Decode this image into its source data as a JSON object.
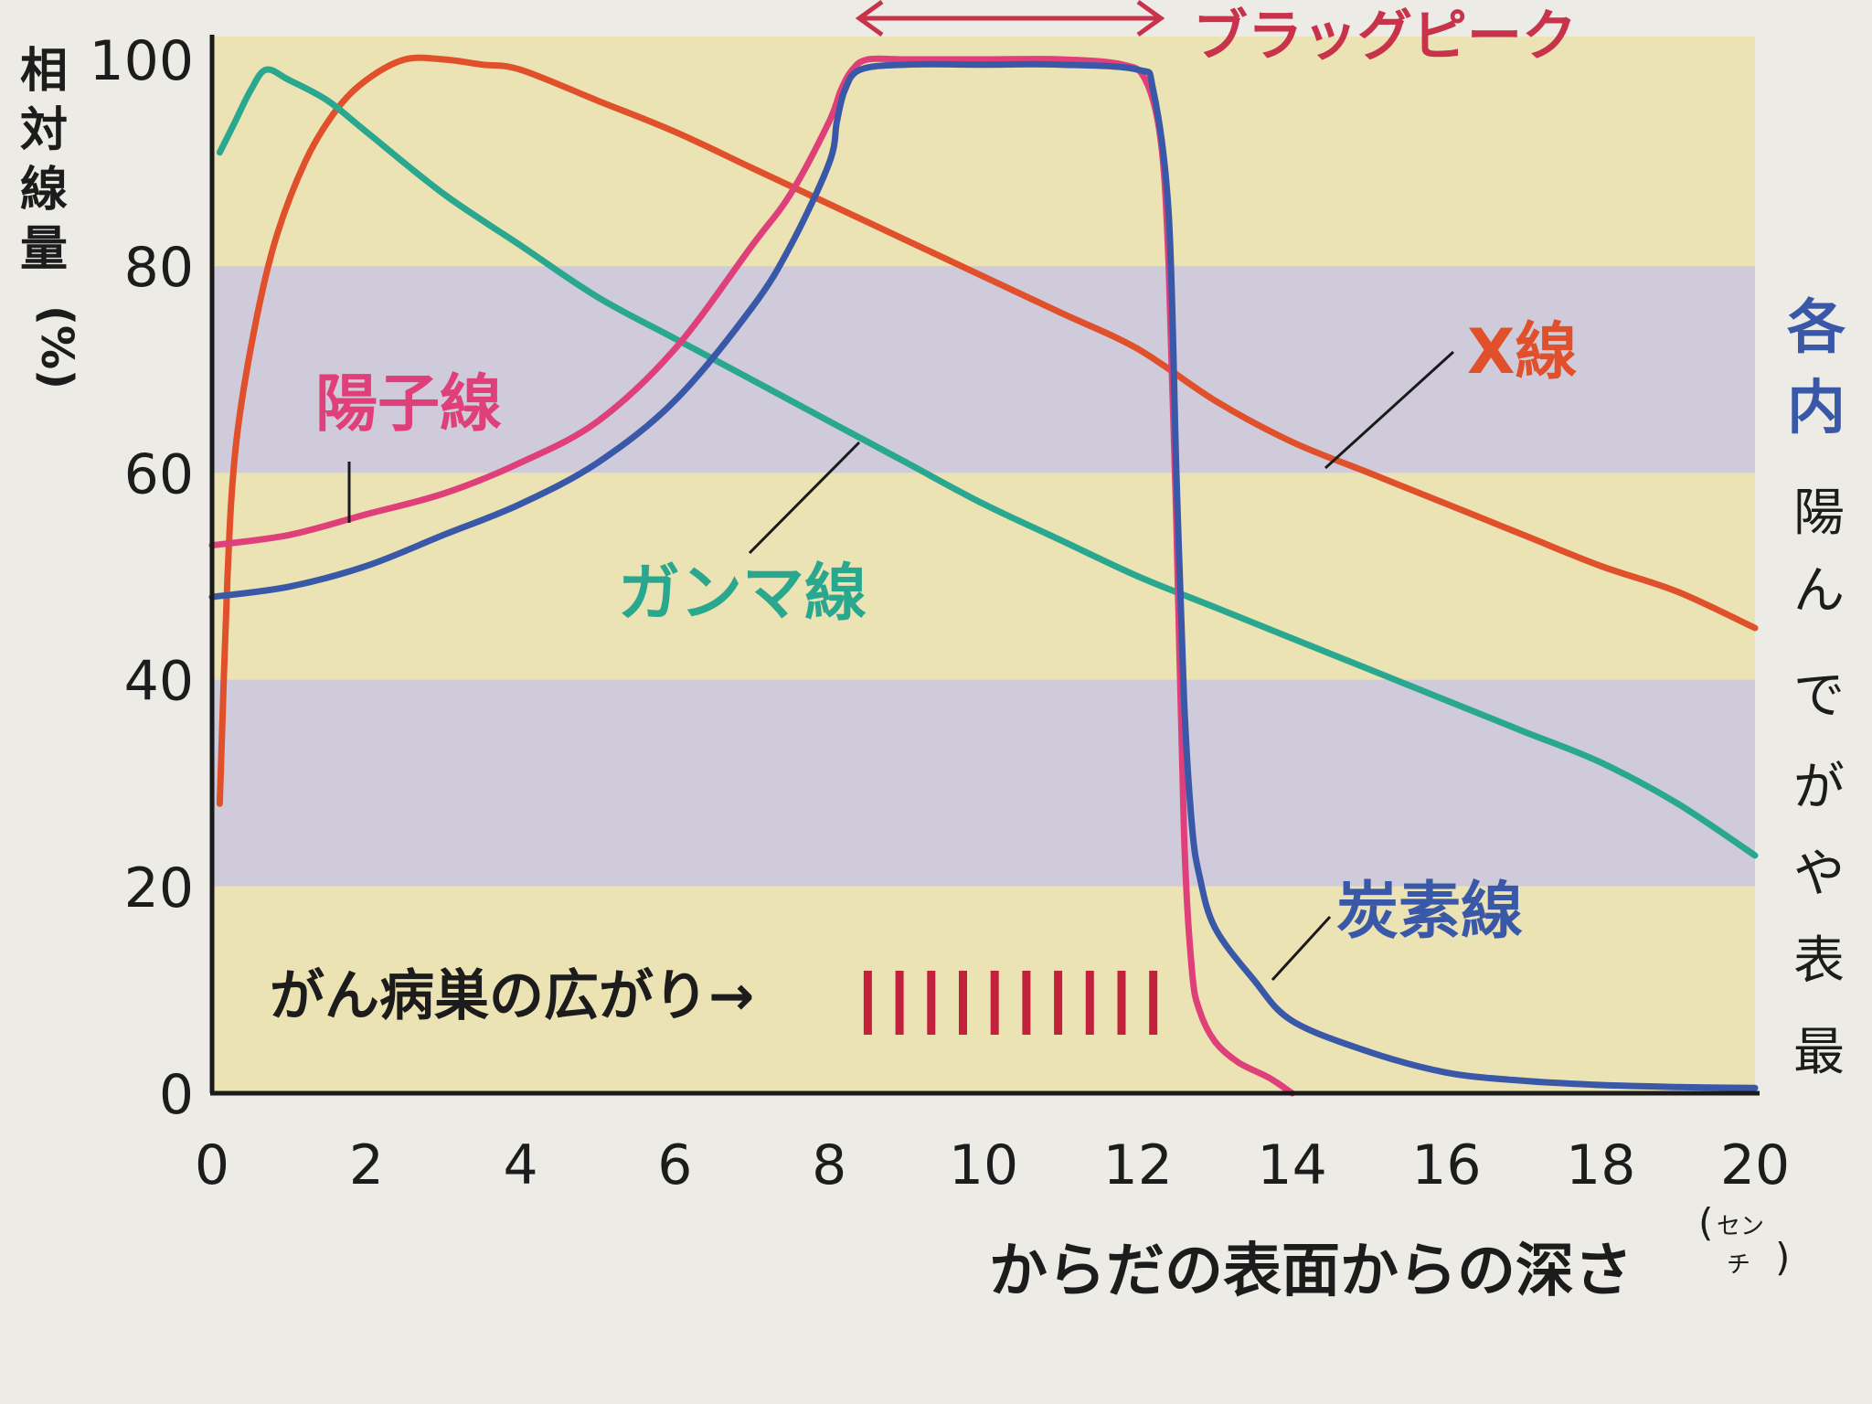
{
  "chart_data": {
    "type": "line",
    "title": "",
    "xlabel": "からだの表面からの深さ",
    "xlabel_unit_top": "セン",
    "xlabel_unit_bottom": "チ",
    "ylabel_chars": [
      "相",
      "対",
      "線",
      "量",
      "(%)"
    ],
    "xlim": [
      0,
      20
    ],
    "ylim": [
      0,
      100
    ],
    "x_ticks": [
      "0",
      "2",
      "4",
      "6",
      "8",
      "10",
      "12",
      "14",
      "16",
      "18",
      "20"
    ],
    "y_ticks": [
      "0",
      "20",
      "40",
      "60",
      "80",
      "100"
    ],
    "band_colors": [
      "#ece3b4",
      "#cfcbdb"
    ],
    "series": [
      {
        "name": "X線",
        "color": "#e0502a",
        "x": [
          0.1,
          0.2,
          0.3,
          0.5,
          0.8,
          1.2,
          1.6,
          2.0,
          2.5,
          3.0,
          3.5,
          4.0,
          5.0,
          6.0,
          7.0,
          8.0,
          9.0,
          10.0,
          11.0,
          12.0,
          13.0,
          14.0,
          15.0,
          16.0,
          17.0,
          18.0,
          19.0,
          20.0
        ],
        "y": [
          28,
          50,
          62,
          72,
          82,
          90,
          95,
          98,
          100,
          100,
          99.5,
          99,
          96,
          93,
          89.5,
          86,
          82.5,
          79,
          75.5,
          72,
          67,
          63,
          60,
          57,
          54,
          51,
          48.5,
          45
        ]
      },
      {
        "name": "ガンマ線",
        "color": "#2aa88f",
        "x": [
          0.1,
          0.3,
          0.5,
          0.7,
          1.0,
          1.5,
          2.0,
          3.0,
          4.0,
          5.0,
          6.0,
          7.0,
          8.0,
          9.0,
          10.0,
          11.0,
          12.0,
          13.0,
          14.0,
          15.0,
          16.0,
          17.0,
          18.0,
          19.0,
          20.0
        ],
        "y": [
          91,
          94,
          97,
          99,
          98,
          96,
          93,
          87,
          82,
          77,
          73,
          69,
          65,
          61,
          57,
          53.5,
          50,
          47,
          44,
          41,
          38,
          35,
          32,
          28,
          23
        ]
      },
      {
        "name": "陽子線",
        "color": "#e0407a",
        "x": [
          0,
          1,
          2,
          3,
          4,
          5,
          6,
          7,
          7.5,
          8,
          8.15,
          8.3,
          8.5,
          9,
          10,
          11,
          11.8,
          12.1,
          12.3,
          12.4,
          12.5,
          12.6,
          12.7,
          12.8,
          13.0,
          13.3,
          13.7,
          14.0
        ],
        "y": [
          53,
          54,
          56,
          58,
          61,
          65,
          72,
          82,
          87,
          94,
          97,
          99,
          100,
          100,
          100,
          100,
          99.5,
          98,
          92,
          80,
          55,
          25,
          12,
          8,
          5,
          3,
          1.5,
          0
        ]
      },
      {
        "name": "炭素線",
        "color": "#3a58a8",
        "x": [
          0,
          1,
          2,
          3,
          4,
          5,
          6,
          7,
          7.5,
          8,
          8.1,
          8.2,
          8.4,
          9,
          10,
          11,
          12,
          12.2,
          12.4,
          12.5,
          12.6,
          12.7,
          12.8,
          13,
          13.5,
          14,
          15,
          16,
          17,
          18,
          19,
          20
        ],
        "y": [
          48,
          49,
          51,
          54,
          57,
          61,
          67,
          76,
          82,
          90,
          94,
          97,
          99,
          99.5,
          99.5,
          99.5,
          99,
          97,
          85,
          60,
          38,
          26,
          21,
          16,
          11,
          7,
          4,
          2,
          1.2,
          0.8,
          0.6,
          0.5
        ]
      }
    ],
    "annotations": {
      "bragg_peak": "ブラッグピーク",
      "tumor_extent": "がん病巣の広がり→",
      "tumor_extent_x": [
        8.5,
        12.2
      ]
    },
    "side_text": {
      "blue_lines": [
        "各",
        "内"
      ],
      "black_chars": [
        "陽",
        "ん",
        "で",
        "が",
        "や",
        "表",
        "最"
      ]
    }
  }
}
